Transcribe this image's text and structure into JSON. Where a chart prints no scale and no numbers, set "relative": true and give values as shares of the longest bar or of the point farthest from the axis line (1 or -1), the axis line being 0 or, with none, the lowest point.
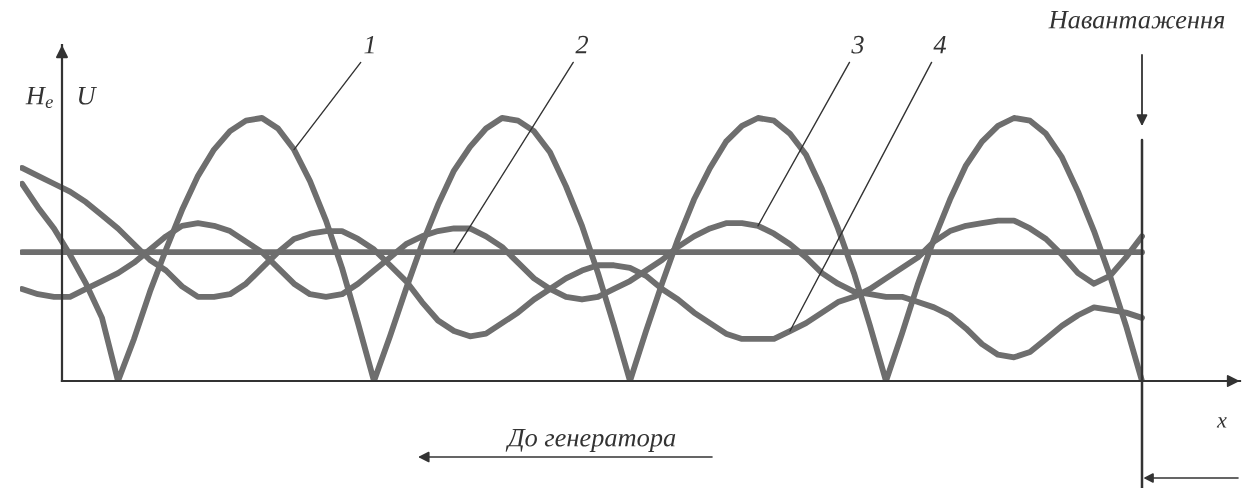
{
  "chart_data": {
    "type": "line",
    "relative": true,
    "xlabel": "x",
    "ylabel": "H$_{e}$",
    "annotations": [
      "U",
      "Навантаження",
      "До генератора"
    ],
    "categories": [
      null,
      null,
      null,
      null,
      null,
      null,
      null,
      null,
      null,
      null,
      null,
      null,
      null,
      null,
      null,
      null,
      null,
      null,
      null,
      null,
      null,
      null,
      null,
      null,
      null,
      null,
      null,
      null,
      null,
      null,
      null,
      null,
      null,
      null,
      null,
      null,
      null,
      null,
      null,
      null,
      null,
      null,
      null,
      null,
      null,
      null,
      null,
      null,
      null,
      null,
      null,
      null,
      null,
      null,
      null,
      null,
      null,
      null,
      null,
      null,
      null,
      null,
      null,
      null,
      null,
      null,
      null,
      null,
      null,
      null,
      null
    ],
    "series": [
      {
        "name": "1",
        "color": "#6e6e6e",
        "values": [
          0.75,
          0.66,
          0.58,
          0.48,
          0.37,
          0.24,
          0,
          0.16,
          0.34,
          0.5,
          0.65,
          0.78,
          0.88,
          0.95,
          0.99,
          1,
          0.96,
          0.88,
          0.76,
          0.61,
          0.43,
          0.22,
          0,
          0.17,
          0.35,
          0.52,
          0.67,
          0.8,
          0.89,
          0.96,
          1,
          0.99,
          0.95,
          0.87,
          0.74,
          0.59,
          0.41,
          0.21,
          0,
          0.19,
          0.37,
          0.54,
          0.69,
          0.81,
          0.91,
          0.97,
          1,
          0.99,
          0.94,
          0.86,
          0.73,
          0.58,
          0.41,
          0.21,
          0,
          0.18,
          0.37,
          0.54,
          0.69,
          0.82,
          0.91,
          0.97,
          1,
          0.99,
          0.94,
          0.85,
          0.72,
          0.57,
          0.4,
          0.21,
          0
        ]
      },
      {
        "name": "2",
        "color": "#6e6e6e",
        "values": [
          0.49,
          0.49,
          0.49,
          0.49,
          0.49,
          0.49,
          0.49,
          0.49,
          0.49,
          0.49,
          0.49,
          0.49,
          0.49,
          0.49,
          0.49,
          0.49,
          0.49,
          0.49,
          0.49,
          0.49,
          0.49,
          0.49,
          0.49,
          0.49,
          0.49,
          0.49,
          0.49,
          0.49,
          0.49,
          0.49,
          0.49,
          0.49,
          0.49,
          0.49,
          0.49,
          0.49,
          0.49,
          0.49,
          0.49,
          0.49,
          0.49,
          0.49,
          0.49,
          0.49,
          0.49,
          0.49,
          0.49,
          0.49,
          0.49,
          0.49,
          0.49,
          0.49,
          0.49,
          0.49,
          0.49,
          0.49,
          0.49,
          0.49,
          0.49,
          0.49,
          0.49,
          0.49,
          0.49,
          0.49,
          0.49,
          0.49,
          0.49,
          0.49,
          0.49,
          0.49,
          0.49
        ]
      },
      {
        "name": "3",
        "color": "#6e6e6e",
        "values": [
          0.35,
          0.33,
          0.32,
          0.32,
          0.35,
          0.38,
          0.41,
          0.45,
          0.5,
          0.55,
          0.59,
          0.6,
          0.59,
          0.57,
          0.53,
          0.49,
          0.43,
          0.37,
          0.33,
          0.32,
          0.33,
          0.37,
          0.42,
          0.47,
          0.52,
          0.55,
          0.57,
          0.58,
          0.58,
          0.55,
          0.51,
          0.45,
          0.39,
          0.35,
          0.32,
          0.31,
          0.32,
          0.35,
          0.38,
          0.42,
          0.46,
          0.51,
          0.55,
          0.58,
          0.6,
          0.6,
          0.59,
          0.56,
          0.52,
          0.47,
          0.41,
          0.37,
          0.34,
          0.33,
          0.32,
          0.32,
          0.3,
          0.28,
          0.25,
          0.2,
          0.14,
          0.1,
          0.09,
          0.11,
          0.16,
          0.21,
          0.25,
          0.28,
          0.27,
          0.26,
          0.24
        ]
      },
      {
        "name": "4",
        "color": "#6e6e6e",
        "values": [
          0.81,
          0.78,
          0.75,
          0.72,
          0.68,
          0.63,
          0.58,
          0.52,
          0.46,
          0.42,
          0.36,
          0.32,
          0.32,
          0.33,
          0.37,
          0.43,
          0.49,
          0.54,
          0.56,
          0.57,
          0.57,
          0.54,
          0.5,
          0.44,
          0.38,
          0.3,
          0.23,
          0.19,
          0.17,
          0.18,
          0.22,
          0.26,
          0.31,
          0.35,
          0.39,
          0.42,
          0.44,
          0.44,
          0.43,
          0.4,
          0.35,
          0.31,
          0.26,
          0.22,
          0.18,
          0.16,
          0.16,
          0.16,
          0.19,
          0.22,
          0.26,
          0.3,
          0.32,
          0.35,
          0.39,
          0.43,
          0.47,
          0.53,
          0.57,
          0.59,
          0.6,
          0.61,
          0.61,
          0.58,
          0.54,
          0.48,
          0.41,
          0.37,
          0.4,
          0.47,
          0.55
        ]
      }
    ]
  }
}
